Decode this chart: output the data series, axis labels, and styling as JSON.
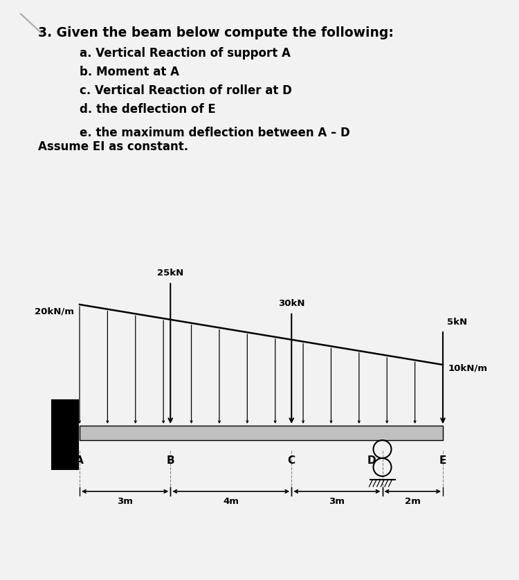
{
  "title_line": "3. Given the beam below compute the following:",
  "items": [
    "a. Vertical Reaction of support A",
    "b. Moment at A",
    "c. Vertical Reaction of roller at D",
    "d. the deflection of E",
    "e. the maximum deflection between A – D"
  ],
  "assume_line": "Assume EI as constant.",
  "bg_color": "#f2f2f2",
  "paper_color": "#ffffff",
  "udl_label_left": "20kN/m",
  "udl_label_right": "10kN/m",
  "load_25": "25kN",
  "load_30": "30kN",
  "load_5": "5kN",
  "seg_labels": [
    "3m",
    "4m",
    "3m",
    "2m"
  ],
  "pt_labels": [
    "A",
    "B",
    "C",
    "D",
    "E"
  ],
  "total_m": 12.0,
  "seg_m": [
    0,
    3,
    7,
    10,
    12
  ]
}
